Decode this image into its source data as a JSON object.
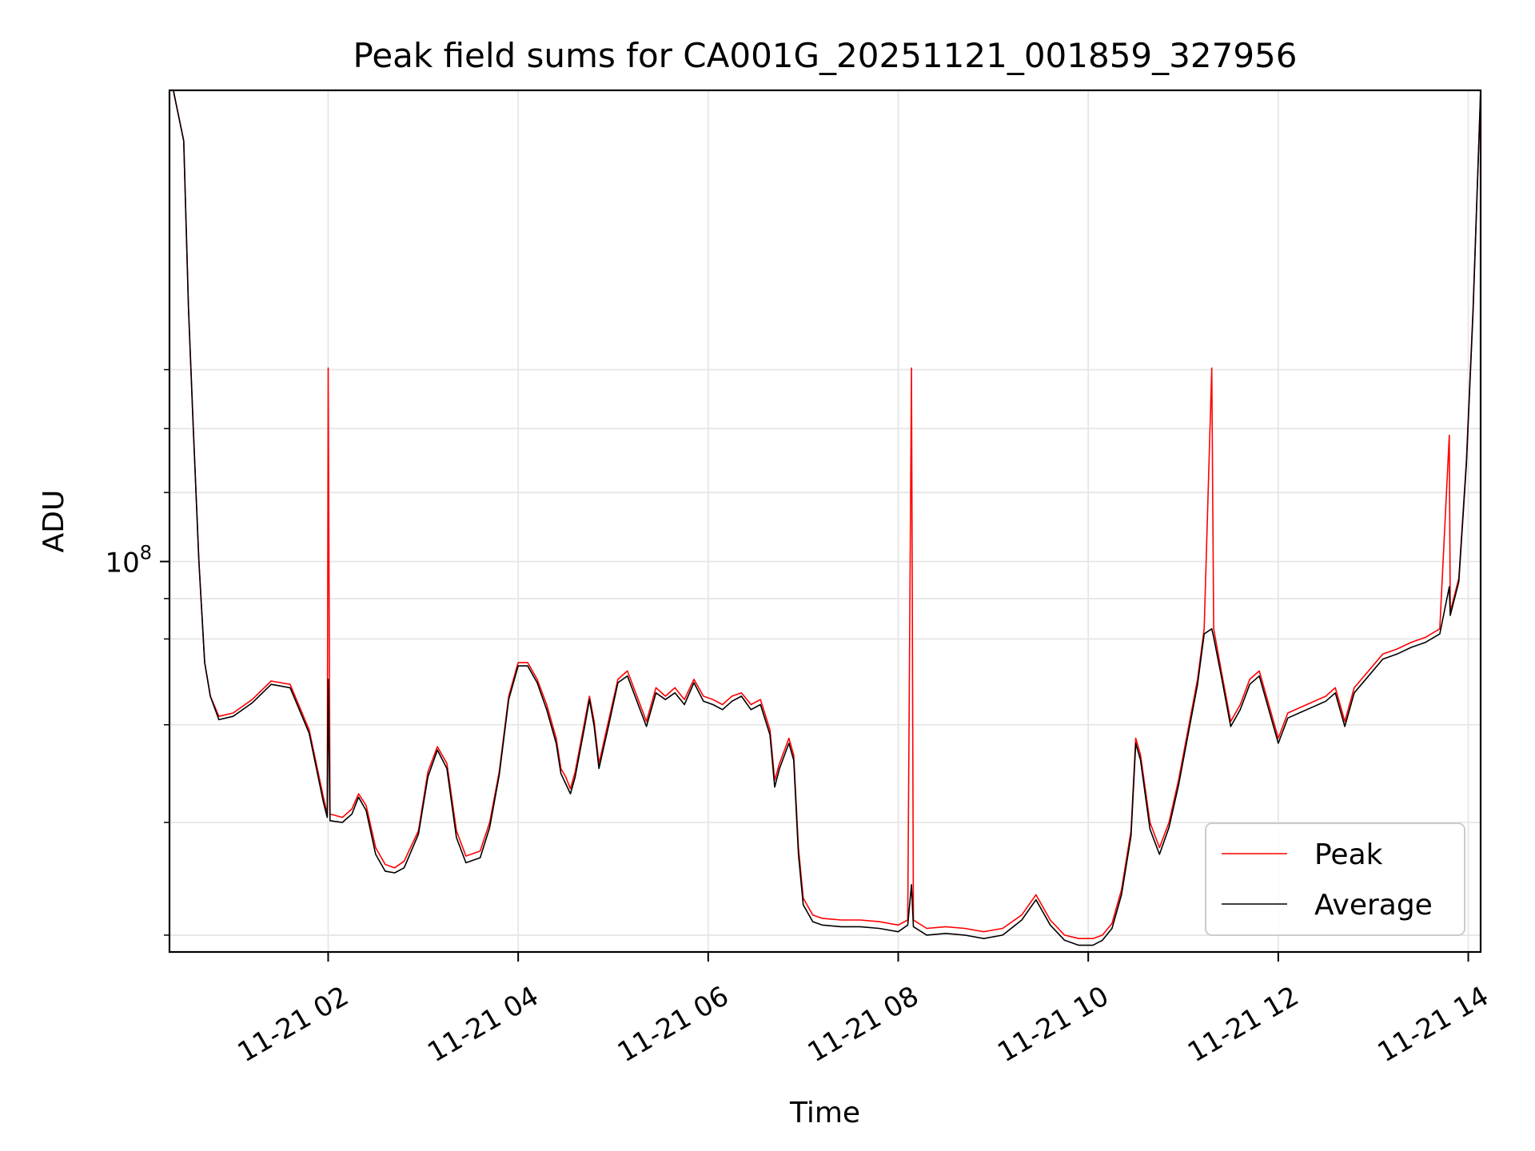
{
  "chart_data": {
    "type": "line",
    "title": "Peak field sums for CA001G_20251121_001859_327956",
    "xlabel": "Time",
    "ylabel": "ADU",
    "x_unit": "hours since 2025-11-21 00:00",
    "xlim": [
      0.33,
      14.13
    ],
    "ylim_log": [
      7.768,
      8.28
    ],
    "x_ticks": [
      {
        "value": 2,
        "label": "11-21 02"
      },
      {
        "value": 4,
        "label": "11-21 04"
      },
      {
        "value": 6,
        "label": "11-21 06"
      },
      {
        "value": 8,
        "label": "11-21 08"
      },
      {
        "value": 10,
        "label": "11-21 10"
      },
      {
        "value": 12,
        "label": "11-21 12"
      },
      {
        "value": 14,
        "label": "11-21 14"
      }
    ],
    "y_major_ticks": [
      {
        "log": 8,
        "label_base": "10",
        "label_exp": "8"
      }
    ],
    "y_minor_grid_log": [
      7.778,
      7.845,
      7.903,
      7.954,
      7.978,
      8.041,
      8.079,
      8.114
    ],
    "grid": true,
    "legend_position": "lower right",
    "series": [
      {
        "name": "Peak",
        "color": "#ff0000",
        "points": [
          [
            0.33,
            8.28
          ],
          [
            0.37,
            8.28
          ],
          [
            0.48,
            8.25
          ],
          [
            0.53,
            8.15
          ],
          [
            0.58,
            8.08
          ],
          [
            0.64,
            8.0
          ],
          [
            0.7,
            7.94
          ],
          [
            0.76,
            7.92
          ],
          [
            0.85,
            7.908
          ],
          [
            1.0,
            7.91
          ],
          [
            1.2,
            7.918
          ],
          [
            1.4,
            7.929
          ],
          [
            1.6,
            7.927
          ],
          [
            1.8,
            7.9
          ],
          [
            1.95,
            7.86
          ],
          [
            1.99,
            7.85
          ],
          [
            2.0,
            8.115
          ],
          [
            2.02,
            7.85
          ],
          [
            2.15,
            7.848
          ],
          [
            2.25,
            7.853
          ],
          [
            2.32,
            7.862
          ],
          [
            2.4,
            7.855
          ],
          [
            2.5,
            7.83
          ],
          [
            2.6,
            7.82
          ],
          [
            2.7,
            7.818
          ],
          [
            2.8,
            7.822
          ],
          [
            2.95,
            7.84
          ],
          [
            3.05,
            7.875
          ],
          [
            3.15,
            7.89
          ],
          [
            3.25,
            7.88
          ],
          [
            3.35,
            7.84
          ],
          [
            3.45,
            7.825
          ],
          [
            3.6,
            7.828
          ],
          [
            3.7,
            7.845
          ],
          [
            3.8,
            7.875
          ],
          [
            3.9,
            7.92
          ],
          [
            4.0,
            7.94
          ],
          [
            4.1,
            7.94
          ],
          [
            4.2,
            7.93
          ],
          [
            4.3,
            7.915
          ],
          [
            4.4,
            7.895
          ],
          [
            4.45,
            7.877
          ],
          [
            4.5,
            7.872
          ],
          [
            4.55,
            7.865
          ],
          [
            4.6,
            7.875
          ],
          [
            4.7,
            7.905
          ],
          [
            4.75,
            7.92
          ],
          [
            4.8,
            7.905
          ],
          [
            4.85,
            7.88
          ],
          [
            4.95,
            7.905
          ],
          [
            5.05,
            7.93
          ],
          [
            5.15,
            7.935
          ],
          [
            5.25,
            7.92
          ],
          [
            5.35,
            7.905
          ],
          [
            5.45,
            7.925
          ],
          [
            5.55,
            7.92
          ],
          [
            5.65,
            7.925
          ],
          [
            5.75,
            7.918
          ],
          [
            5.85,
            7.93
          ],
          [
            5.95,
            7.92
          ],
          [
            6.05,
            7.918
          ],
          [
            6.15,
            7.915
          ],
          [
            6.25,
            7.92
          ],
          [
            6.35,
            7.922
          ],
          [
            6.45,
            7.915
          ],
          [
            6.55,
            7.918
          ],
          [
            6.65,
            7.9
          ],
          [
            6.7,
            7.87
          ],
          [
            6.75,
            7.88
          ],
          [
            6.85,
            7.895
          ],
          [
            6.9,
            7.885
          ],
          [
            6.95,
            7.83
          ],
          [
            7.0,
            7.8
          ],
          [
            7.1,
            7.79
          ],
          [
            7.2,
            7.788
          ],
          [
            7.4,
            7.787
          ],
          [
            7.6,
            7.787
          ],
          [
            7.8,
            7.786
          ],
          [
            8.0,
            7.784
          ],
          [
            8.1,
            7.787
          ],
          [
            8.14,
            8.115
          ],
          [
            8.16,
            7.787
          ],
          [
            8.3,
            7.782
          ],
          [
            8.5,
            7.783
          ],
          [
            8.7,
            7.782
          ],
          [
            8.9,
            7.78
          ],
          [
            9.1,
            7.782
          ],
          [
            9.3,
            7.79
          ],
          [
            9.45,
            7.802
          ],
          [
            9.6,
            7.787
          ],
          [
            9.75,
            7.778
          ],
          [
            9.9,
            7.776
          ],
          [
            10.05,
            7.776
          ],
          [
            10.15,
            7.778
          ],
          [
            10.25,
            7.785
          ],
          [
            10.35,
            7.805
          ],
          [
            10.45,
            7.84
          ],
          [
            10.5,
            7.895
          ],
          [
            10.55,
            7.885
          ],
          [
            10.65,
            7.845
          ],
          [
            10.75,
            7.83
          ],
          [
            10.85,
            7.845
          ],
          [
            10.95,
            7.87
          ],
          [
            11.05,
            7.9
          ],
          [
            11.15,
            7.93
          ],
          [
            11.22,
            7.96
          ],
          [
            11.3,
            8.115
          ],
          [
            11.32,
            7.96
          ],
          [
            11.4,
            7.935
          ],
          [
            11.5,
            7.905
          ],
          [
            11.6,
            7.915
          ],
          [
            11.7,
            7.93
          ],
          [
            11.8,
            7.935
          ],
          [
            11.9,
            7.915
          ],
          [
            12.0,
            7.895
          ],
          [
            12.1,
            7.91
          ],
          [
            12.3,
            7.915
          ],
          [
            12.5,
            7.92
          ],
          [
            12.6,
            7.925
          ],
          [
            12.7,
            7.905
          ],
          [
            12.8,
            7.925
          ],
          [
            12.95,
            7.935
          ],
          [
            13.1,
            7.945
          ],
          [
            13.25,
            7.948
          ],
          [
            13.4,
            7.952
          ],
          [
            13.55,
            7.955
          ],
          [
            13.7,
            7.96
          ],
          [
            13.8,
            8.075
          ],
          [
            13.81,
            7.97
          ],
          [
            13.9,
            7.99
          ],
          [
            13.98,
            8.06
          ],
          [
            14.05,
            8.15
          ],
          [
            14.13,
            8.28
          ]
        ]
      },
      {
        "name": "Average",
        "color": "#000000",
        "points": [
          [
            0.33,
            8.28
          ],
          [
            0.37,
            8.28
          ],
          [
            0.48,
            8.25
          ],
          [
            0.53,
            8.15
          ],
          [
            0.58,
            8.08
          ],
          [
            0.64,
            8.0
          ],
          [
            0.7,
            7.94
          ],
          [
            0.76,
            7.92
          ],
          [
            0.85,
            7.906
          ],
          [
            1.0,
            7.908
          ],
          [
            1.2,
            7.916
          ],
          [
            1.4,
            7.927
          ],
          [
            1.6,
            7.925
          ],
          [
            1.8,
            7.898
          ],
          [
            1.95,
            7.857
          ],
          [
            1.99,
            7.848
          ],
          [
            2.0,
            7.93
          ],
          [
            2.02,
            7.846
          ],
          [
            2.15,
            7.845
          ],
          [
            2.25,
            7.85
          ],
          [
            2.32,
            7.86
          ],
          [
            2.4,
            7.852
          ],
          [
            2.5,
            7.826
          ],
          [
            2.6,
            7.816
          ],
          [
            2.7,
            7.815
          ],
          [
            2.8,
            7.818
          ],
          [
            2.95,
            7.838
          ],
          [
            3.05,
            7.872
          ],
          [
            3.15,
            7.888
          ],
          [
            3.25,
            7.877
          ],
          [
            3.35,
            7.836
          ],
          [
            3.45,
            7.821
          ],
          [
            3.6,
            7.824
          ],
          [
            3.7,
            7.842
          ],
          [
            3.8,
            7.873
          ],
          [
            3.9,
            7.918
          ],
          [
            4.0,
            7.938
          ],
          [
            4.1,
            7.938
          ],
          [
            4.2,
            7.928
          ],
          [
            4.3,
            7.912
          ],
          [
            4.4,
            7.892
          ],
          [
            4.45,
            7.874
          ],
          [
            4.5,
            7.868
          ],
          [
            4.55,
            7.862
          ],
          [
            4.6,
            7.872
          ],
          [
            4.7,
            7.902
          ],
          [
            4.75,
            7.918
          ],
          [
            4.8,
            7.902
          ],
          [
            4.85,
            7.877
          ],
          [
            4.95,
            7.902
          ],
          [
            5.05,
            7.928
          ],
          [
            5.15,
            7.932
          ],
          [
            5.25,
            7.917
          ],
          [
            5.35,
            7.902
          ],
          [
            5.45,
            7.922
          ],
          [
            5.55,
            7.918
          ],
          [
            5.65,
            7.922
          ],
          [
            5.75,
            7.915
          ],
          [
            5.85,
            7.928
          ],
          [
            5.95,
            7.917
          ],
          [
            6.05,
            7.915
          ],
          [
            6.15,
            7.912
          ],
          [
            6.25,
            7.917
          ],
          [
            6.35,
            7.92
          ],
          [
            6.45,
            7.912
          ],
          [
            6.55,
            7.915
          ],
          [
            6.65,
            7.897
          ],
          [
            6.7,
            7.866
          ],
          [
            6.75,
            7.877
          ],
          [
            6.85,
            7.892
          ],
          [
            6.9,
            7.882
          ],
          [
            6.95,
            7.826
          ],
          [
            7.0,
            7.796
          ],
          [
            7.1,
            7.786
          ],
          [
            7.2,
            7.784
          ],
          [
            7.4,
            7.783
          ],
          [
            7.6,
            7.783
          ],
          [
            7.8,
            7.782
          ],
          [
            8.0,
            7.78
          ],
          [
            8.1,
            7.784
          ],
          [
            8.14,
            7.808
          ],
          [
            8.16,
            7.783
          ],
          [
            8.3,
            7.778
          ],
          [
            8.5,
            7.779
          ],
          [
            8.7,
            7.778
          ],
          [
            8.9,
            7.776
          ],
          [
            9.1,
            7.778
          ],
          [
            9.3,
            7.787
          ],
          [
            9.45,
            7.799
          ],
          [
            9.6,
            7.784
          ],
          [
            9.75,
            7.775
          ],
          [
            9.9,
            7.772
          ],
          [
            10.05,
            7.772
          ],
          [
            10.15,
            7.775
          ],
          [
            10.25,
            7.782
          ],
          [
            10.35,
            7.802
          ],
          [
            10.45,
            7.837
          ],
          [
            10.5,
            7.892
          ],
          [
            10.55,
            7.882
          ],
          [
            10.65,
            7.841
          ],
          [
            10.75,
            7.826
          ],
          [
            10.85,
            7.842
          ],
          [
            10.95,
            7.867
          ],
          [
            11.05,
            7.897
          ],
          [
            11.15,
            7.927
          ],
          [
            11.22,
            7.957
          ],
          [
            11.3,
            7.96
          ],
          [
            11.32,
            7.955
          ],
          [
            11.4,
            7.932
          ],
          [
            11.5,
            7.902
          ],
          [
            11.6,
            7.912
          ],
          [
            11.7,
            7.927
          ],
          [
            11.8,
            7.932
          ],
          [
            11.9,
            7.912
          ],
          [
            12.0,
            7.892
          ],
          [
            12.1,
            7.907
          ],
          [
            12.3,
            7.912
          ],
          [
            12.5,
            7.917
          ],
          [
            12.6,
            7.922
          ],
          [
            12.7,
            7.902
          ],
          [
            12.8,
            7.922
          ],
          [
            12.95,
            7.932
          ],
          [
            13.1,
            7.942
          ],
          [
            13.25,
            7.945
          ],
          [
            13.4,
            7.949
          ],
          [
            13.55,
            7.952
          ],
          [
            13.7,
            7.957
          ],
          [
            13.8,
            7.985
          ],
          [
            13.81,
            7.968
          ],
          [
            13.9,
            7.988
          ],
          [
            13.98,
            8.058
          ],
          [
            14.05,
            8.148
          ],
          [
            14.13,
            8.28
          ]
        ]
      }
    ]
  }
}
